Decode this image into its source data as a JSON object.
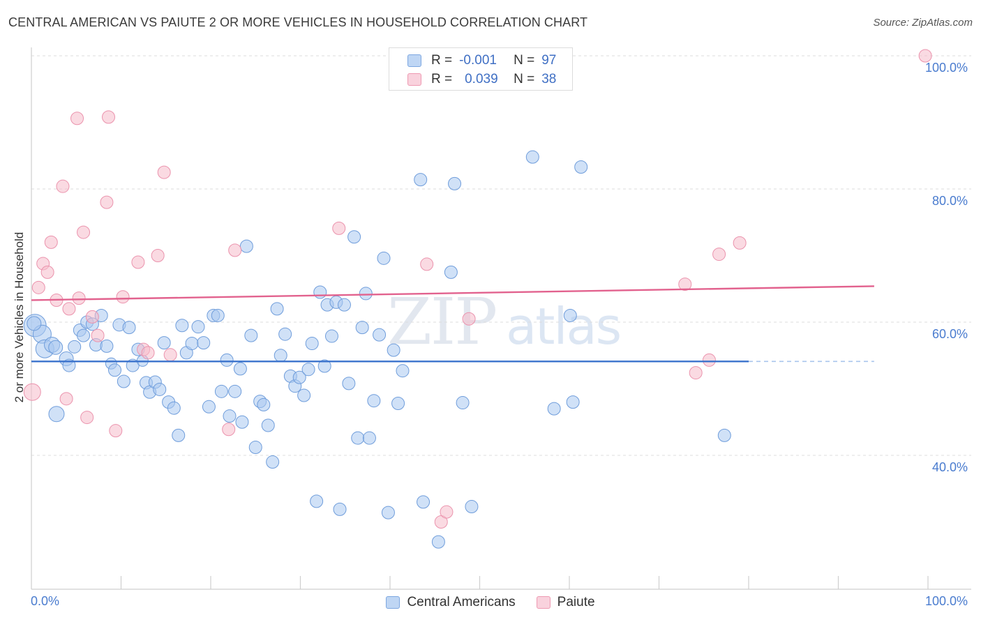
{
  "title": "CENTRAL AMERICAN VS PAIUTE 2 OR MORE VEHICLES IN HOUSEHOLD CORRELATION CHART",
  "source": "Source: ZipAtlas.com",
  "watermark": {
    "zip": "ZIP",
    "atlas": "atlas"
  },
  "legend_top": {
    "rows": [
      {
        "r_label": "R =",
        "r_value": "-0.001",
        "n_label": "N =",
        "n_value": "97",
        "color": "#a9c8f0"
      },
      {
        "r_label": "R =",
        "r_value": "0.039",
        "n_label": "N =",
        "n_value": "38",
        "color": "#f6bccb"
      }
    ]
  },
  "legend_bottom": [
    {
      "label": "Central Americans",
      "color": "#a9c8f0"
    },
    {
      "label": "Paiute",
      "color": "#f6bccb"
    }
  ],
  "chart_data": {
    "type": "scatter",
    "ylabel": "2 or more Vehicles in Household",
    "x_tick_labels": [
      "0.0%",
      "100.0%"
    ],
    "y_tick_labels": [
      "40.0%",
      "60.0%",
      "80.0%",
      "100.0%"
    ],
    "xlim": [
      0,
      100
    ],
    "ylim": [
      20,
      102
    ],
    "y_grid": [
      40,
      60,
      80,
      100
    ],
    "colors": {
      "blue": "#4f86d6",
      "blue_fill": "#a9c8f0",
      "pink": "#e46e96",
      "pink_fill": "#f6bccb"
    },
    "trend_blue": {
      "x": [
        0,
        80
      ],
      "y": [
        54.1,
        54.1
      ],
      "dash_to": 94
    },
    "trend_pink": {
      "x": [
        0,
        94
      ],
      "y": [
        63.3,
        65.4
      ]
    },
    "series": [
      {
        "name": "Central Americans",
        "points": [
          [
            0.4,
            59.5,
            16
          ],
          [
            1.2,
            58.2,
            13
          ],
          [
            1.5,
            56.0,
            13
          ],
          [
            2.3,
            56.6,
            11
          ],
          [
            2.8,
            46.2,
            11
          ],
          [
            2.7,
            56.2,
            10
          ],
          [
            3.9,
            54.5,
            10
          ],
          [
            4.2,
            53.5,
            9
          ],
          [
            4.8,
            56.3,
            9
          ],
          [
            5.4,
            58.8,
            9
          ],
          [
            5.8,
            58.0,
            9
          ],
          [
            6.2,
            60.0,
            9
          ],
          [
            6.8,
            59.7,
            9
          ],
          [
            7.2,
            56.6,
            9
          ],
          [
            7.8,
            61.0,
            9
          ],
          [
            8.4,
            56.4,
            9
          ],
          [
            8.9,
            53.8,
            8
          ],
          [
            9.3,
            52.8,
            9
          ],
          [
            9.8,
            59.6,
            9
          ],
          [
            10.3,
            51.1,
            9
          ],
          [
            10.9,
            59.2,
            9
          ],
          [
            11.3,
            53.5,
            9
          ],
          [
            11.9,
            55.9,
            9
          ],
          [
            12.4,
            54.2,
            8
          ],
          [
            12.8,
            50.9,
            9
          ],
          [
            13.2,
            49.5,
            9
          ],
          [
            13.8,
            51.0,
            9
          ],
          [
            14.3,
            49.9,
            9
          ],
          [
            14.8,
            56.9,
            9
          ],
          [
            15.3,
            48.0,
            9
          ],
          [
            15.9,
            47.1,
            9
          ],
          [
            16.4,
            43.0,
            9
          ],
          [
            16.8,
            59.5,
            9
          ],
          [
            17.3,
            55.4,
            9
          ],
          [
            17.9,
            56.8,
            9
          ],
          [
            18.6,
            59.3,
            9
          ],
          [
            19.2,
            56.9,
            9
          ],
          [
            19.8,
            47.3,
            9
          ],
          [
            20.3,
            61.0,
            9
          ],
          [
            20.8,
            61.0,
            9
          ],
          [
            21.2,
            49.6,
            9
          ],
          [
            21.8,
            54.3,
            9
          ],
          [
            22.1,
            45.9,
            9
          ],
          [
            22.7,
            49.6,
            9
          ],
          [
            23.3,
            53.0,
            9
          ],
          [
            23.5,
            45.0,
            9
          ],
          [
            24.0,
            71.4,
            9
          ],
          [
            24.5,
            58.0,
            9
          ],
          [
            25.0,
            41.2,
            9
          ],
          [
            25.5,
            48.1,
            9
          ],
          [
            25.9,
            47.6,
            9
          ],
          [
            26.4,
            44.5,
            9
          ],
          [
            26.9,
            39.0,
            9
          ],
          [
            27.4,
            62.0,
            9
          ],
          [
            27.8,
            55.0,
            9
          ],
          [
            28.3,
            58.2,
            9
          ],
          [
            28.9,
            51.9,
            9
          ],
          [
            29.4,
            50.4,
            9
          ],
          [
            29.9,
            51.7,
            9
          ],
          [
            30.4,
            49.0,
            9
          ],
          [
            30.9,
            52.9,
            9
          ],
          [
            31.3,
            56.8,
            9
          ],
          [
            31.8,
            33.1,
            9
          ],
          [
            32.2,
            64.5,
            9
          ],
          [
            32.7,
            53.4,
            9
          ],
          [
            33.0,
            62.6,
            9
          ],
          [
            33.5,
            57.9,
            9
          ],
          [
            34.0,
            63.0,
            9
          ],
          [
            34.4,
            31.9,
            9
          ],
          [
            34.9,
            62.6,
            9
          ],
          [
            35.4,
            50.8,
            9
          ],
          [
            36.0,
            72.8,
            9
          ],
          [
            36.4,
            42.6,
            9
          ],
          [
            36.9,
            59.2,
            9
          ],
          [
            37.3,
            64.3,
            9
          ],
          [
            37.7,
            42.6,
            9
          ],
          [
            38.2,
            48.2,
            9
          ],
          [
            38.8,
            58.1,
            9
          ],
          [
            39.3,
            69.6,
            9
          ],
          [
            39.8,
            31.4,
            9
          ],
          [
            40.4,
            55.8,
            9
          ],
          [
            40.9,
            47.8,
            9
          ],
          [
            41.4,
            52.7,
            9
          ],
          [
            43.4,
            81.4,
            9
          ],
          [
            43.7,
            33.0,
            9
          ],
          [
            45.4,
            27.0,
            9
          ],
          [
            46.8,
            67.5,
            9
          ],
          [
            47.2,
            80.8,
            9
          ],
          [
            48.1,
            47.9,
            9
          ],
          [
            49.1,
            32.3,
            9
          ],
          [
            55.9,
            84.8,
            9
          ],
          [
            58.3,
            47.0,
            9
          ],
          [
            60.1,
            61.0,
            9
          ],
          [
            60.4,
            48.0,
            9
          ],
          [
            61.3,
            83.3,
            9
          ],
          [
            77.3,
            43.0,
            9
          ],
          [
            0.3,
            59.8,
            10
          ]
        ]
      },
      {
        "name": "Paiute",
        "points": [
          [
            0.1,
            49.5,
            12
          ],
          [
            0.8,
            65.2,
            9
          ],
          [
            1.3,
            68.8,
            9
          ],
          [
            1.8,
            67.5,
            9
          ],
          [
            2.2,
            72.0,
            9
          ],
          [
            2.8,
            63.3,
            9
          ],
          [
            3.5,
            80.4,
            9
          ],
          [
            3.9,
            48.5,
            9
          ],
          [
            4.2,
            62.0,
            9
          ],
          [
            5.1,
            90.6,
            9
          ],
          [
            5.3,
            63.6,
            9
          ],
          [
            5.8,
            73.5,
            9
          ],
          [
            6.2,
            45.7,
            9
          ],
          [
            6.8,
            60.8,
            9
          ],
          [
            7.4,
            58.0,
            9
          ],
          [
            8.4,
            78.0,
            9
          ],
          [
            8.6,
            90.8,
            9
          ],
          [
            9.4,
            43.7,
            9
          ],
          [
            10.2,
            63.8,
            9
          ],
          [
            11.9,
            69.0,
            9
          ],
          [
            12.5,
            55.9,
            9
          ],
          [
            13.0,
            55.4,
            9
          ],
          [
            14.1,
            70.0,
            9
          ],
          [
            14.8,
            82.5,
            9
          ],
          [
            15.5,
            55.1,
            9
          ],
          [
            22.0,
            43.9,
            9
          ],
          [
            22.7,
            70.8,
            9
          ],
          [
            34.3,
            74.1,
            9
          ],
          [
            44.1,
            68.7,
            9
          ],
          [
            45.7,
            30.0,
            9
          ],
          [
            46.3,
            31.5,
            9
          ],
          [
            48.8,
            60.5,
            9
          ],
          [
            72.9,
            65.7,
            9
          ],
          [
            74.1,
            52.4,
            9
          ],
          [
            75.6,
            54.3,
            9
          ],
          [
            76.7,
            70.2,
            9
          ],
          [
            79.0,
            71.9,
            9
          ],
          [
            99.7,
            100.0,
            9
          ]
        ]
      }
    ]
  }
}
